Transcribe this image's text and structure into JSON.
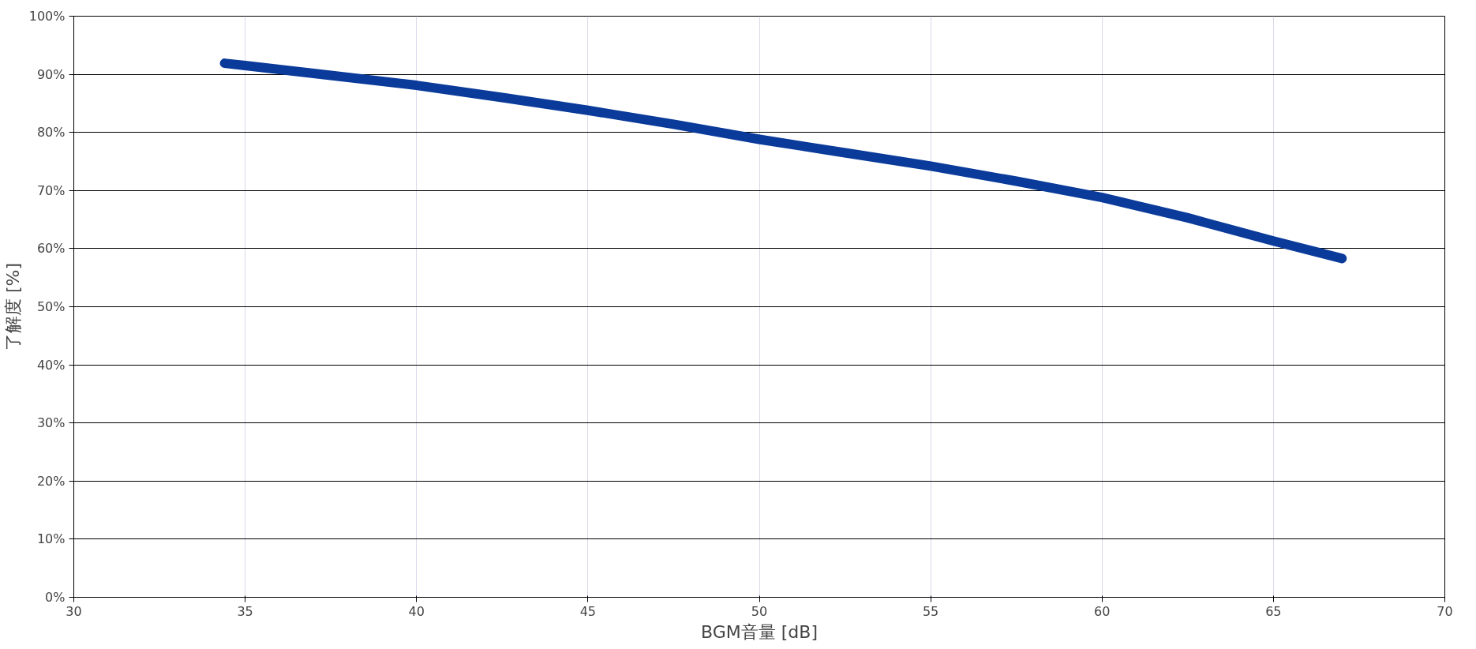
{
  "chart_data": {
    "type": "line",
    "xlabel": "BGM音量 [dB]",
    "ylabel": "了解度 [%]",
    "series": [
      {
        "color": "#0a3a9a",
        "x": [
          34.4,
          35,
          37.5,
          40,
          42.5,
          45,
          47.5,
          50,
          52.5,
          55,
          57.5,
          60,
          62.5,
          65,
          67.0
        ],
        "values": [
          91.9,
          91.5,
          89.8,
          88.1,
          86.0,
          83.8,
          81.4,
          78.8,
          76.5,
          74.2,
          71.6,
          68.8,
          65.3,
          61.3,
          58.3
        ]
      }
    ],
    "xlim": [
      30,
      70
    ],
    "xticks": [
      30,
      35,
      40,
      45,
      50,
      55,
      60,
      65,
      70
    ],
    "ylim": [
      0,
      100
    ],
    "yticks": [
      {
        "value": 0,
        "label": "0%"
      },
      {
        "value": 10,
        "label": "10%"
      },
      {
        "value": 20,
        "label": "20%"
      },
      {
        "value": 30,
        "label": "30%"
      },
      {
        "value": 40,
        "label": "40%"
      },
      {
        "value": 50,
        "label": "50%"
      },
      {
        "value": 60,
        "label": "60%"
      },
      {
        "value": 70,
        "label": "70%"
      },
      {
        "value": 80,
        "label": "80%"
      },
      {
        "value": 90,
        "label": "90%"
      },
      {
        "value": 100,
        "label": "100%"
      }
    ],
    "grid": true,
    "marker": "none",
    "line_style": "solid"
  }
}
